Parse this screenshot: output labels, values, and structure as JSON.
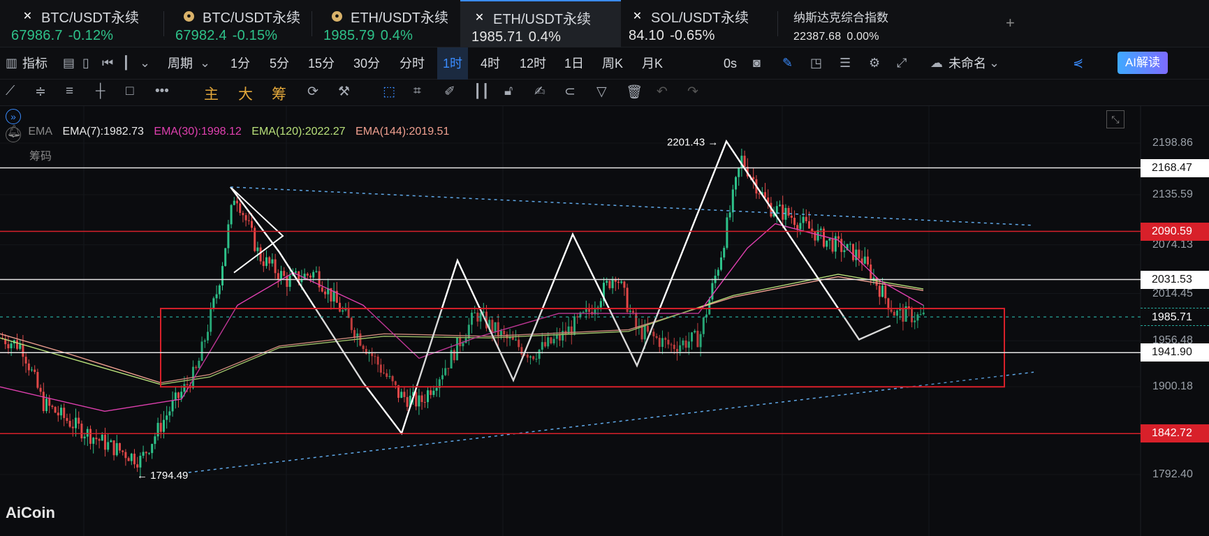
{
  "tabs": [
    {
      "symbol": "BTC/USDT永续",
      "price": "67986.7",
      "change": "-0.12%",
      "icon": "x-icon"
    },
    {
      "symbol": "BTC/USDT永续",
      "price": "67982.4",
      "change": "-0.15%",
      "icon": "coin-icon"
    },
    {
      "symbol": "ETH/USDT永续",
      "price": "1985.79",
      "change": "0.4%",
      "icon": "coin-icon"
    },
    {
      "symbol": "ETH/USDT永续",
      "price": "1985.71",
      "change": "0.4%",
      "icon": "x-icon"
    },
    {
      "symbol": "SOL/USDT永续",
      "price": "84.10",
      "change": "-0.65%",
      "icon": "x-icon"
    },
    {
      "symbol": "纳斯达克综合指数",
      "price": "22387.68",
      "change": "0.00%",
      "icon": ""
    }
  ],
  "tab_plus": "+",
  "toolbar": {
    "indicator_label": "指标",
    "period_label": "周期",
    "intervals": [
      "1分",
      "5分",
      "15分",
      "30分",
      "分时",
      "1时",
      "4时",
      "12时",
      "1日",
      "周K",
      "月K"
    ],
    "active_interval": "1时",
    "countdown": "0s",
    "layout_name": "未命名",
    "ai_label": "AI解读"
  },
  "draw_toolbar": {
    "main": "主",
    "big": "大",
    "chip": "筹"
  },
  "legend": {
    "ema_label": "EMA",
    "chip_label": "筹码",
    "items": [
      {
        "text": "EMA(7):1982.73",
        "color": "#e8e8e8"
      },
      {
        "text": "EMA(30):1998.12",
        "color": "#e040b0"
      },
      {
        "text": "EMA(120):2022.27",
        "color": "#b8e07a"
      },
      {
        "text": "EMA(144):2019.51",
        "color": "#f0a090"
      }
    ]
  },
  "price_axis": [
    "2198.86",
    "2135.59",
    "2074.13",
    "2014.45",
    "1956.48",
    "1900.18",
    "1792.40"
  ],
  "levels": [
    {
      "price": "2168.47",
      "kind": "white"
    },
    {
      "price": "2090.59",
      "kind": "red"
    },
    {
      "price": "2031.53",
      "kind": "white"
    },
    {
      "price": "1985.71",
      "kind": "current"
    },
    {
      "price": "1941.90",
      "kind": "white"
    },
    {
      "price": "1842.72",
      "kind": "red"
    }
  ],
  "annotations": {
    "high": "2201.43",
    "low": "1794.49"
  },
  "logo": "AiCoin",
  "colors": {
    "up": "#2ec28a",
    "down": "#e04848",
    "accent": "#3a8cff",
    "current": "#26a69a"
  }
}
